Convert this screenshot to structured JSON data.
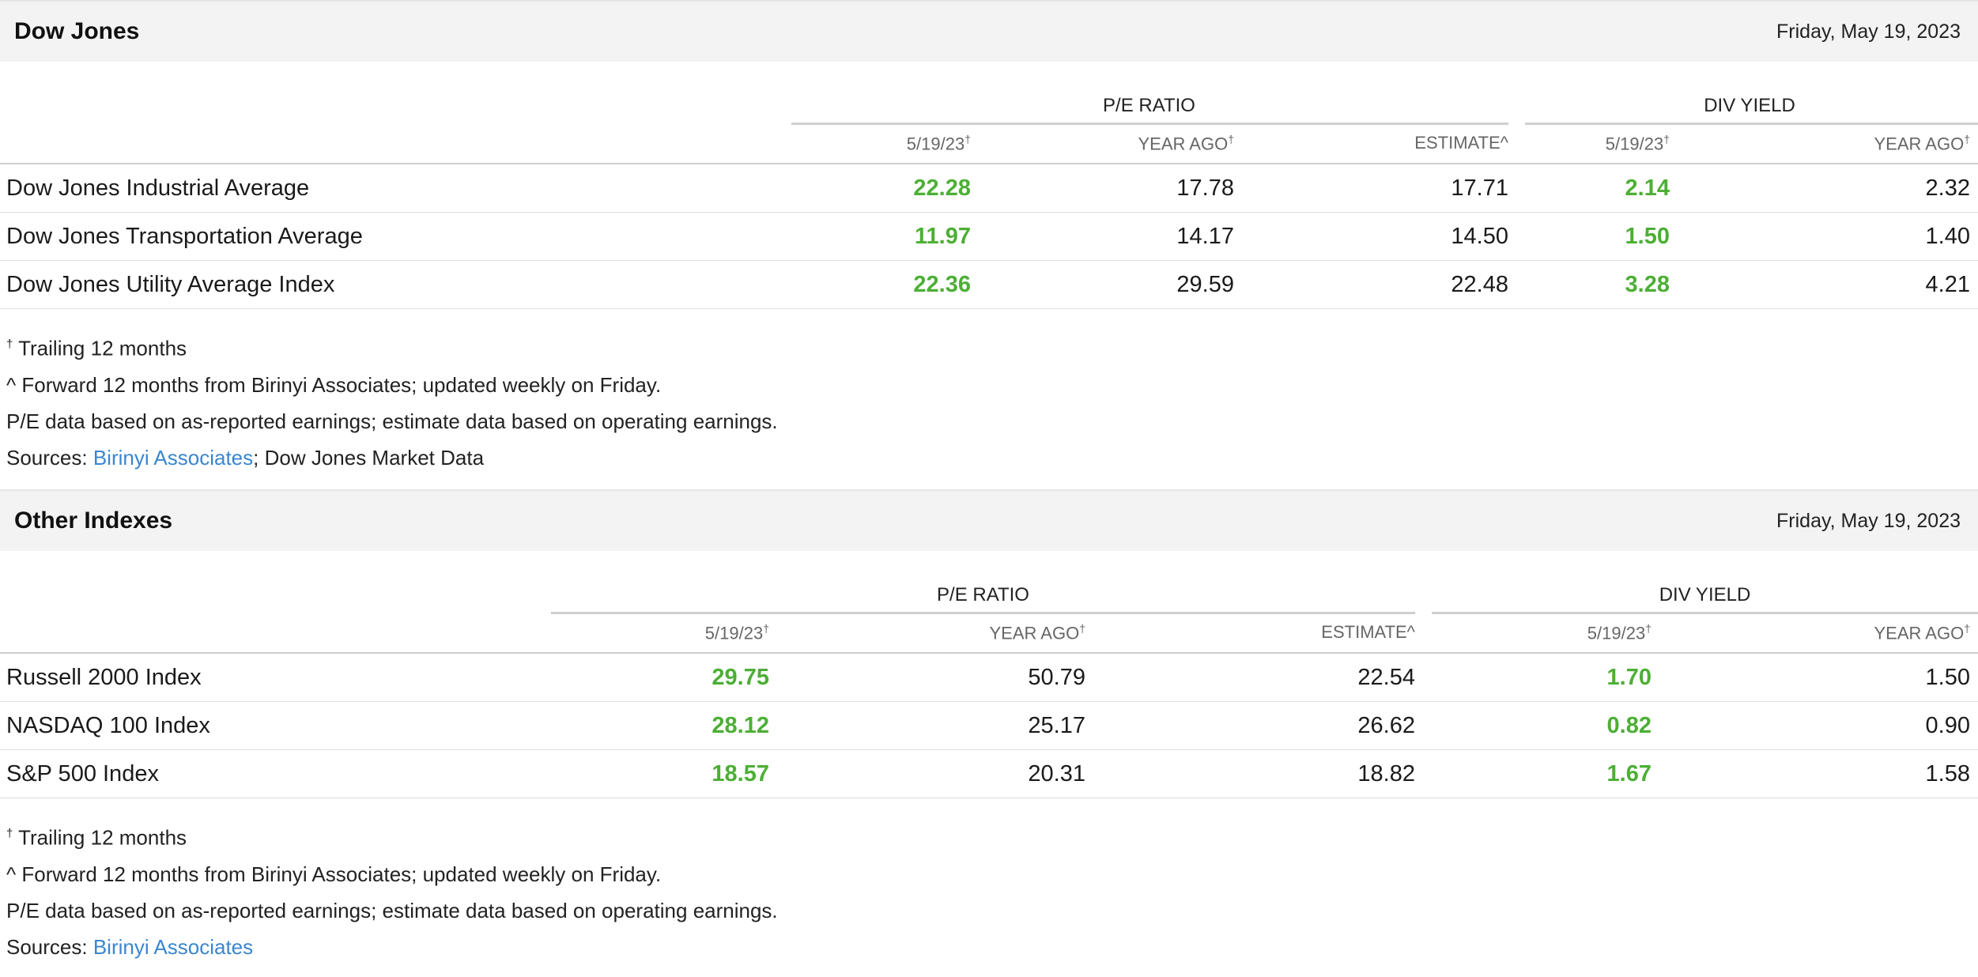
{
  "sections": [
    {
      "title": "Dow Jones",
      "date": "Friday, May 19, 2023",
      "group_pe": "P/E RATIO",
      "group_div": "DIV YIELD",
      "columns": [
        "5/19/23",
        "YEAR AGO",
        "ESTIMATE^",
        "5/19/23",
        "YEAR AGO"
      ],
      "dagger": "†",
      "rows": [
        {
          "name": "Dow Jones Industrial Average",
          "pe_current": "22.28",
          "pe_year_ago": "17.78",
          "pe_estimate": "17.71",
          "div_current": "2.14",
          "div_year_ago": "2.32"
        },
        {
          "name": "Dow Jones Transportation Average",
          "pe_current": "11.97",
          "pe_year_ago": "14.17",
          "pe_estimate": "14.50",
          "div_current": "1.50",
          "div_year_ago": "1.40"
        },
        {
          "name": "Dow Jones Utility Average Index",
          "pe_current": "22.36",
          "pe_year_ago": "29.59",
          "pe_estimate": "22.48",
          "div_current": "3.28",
          "div_year_ago": "4.21"
        }
      ],
      "notes": {
        "trailing": "Trailing 12 months",
        "forward": "^ Forward 12 months from Birinyi Associates; updated weekly on Friday.",
        "basis": "P/E data based on as-reported earnings; estimate data based on operating earnings.",
        "sources_label": "Sources: ",
        "sources_link": "Birinyi Associates",
        "sources_rest": "; Dow Jones Market Data"
      }
    },
    {
      "title": "Other Indexes",
      "date": "Friday, May 19, 2023",
      "group_pe": "P/E RATIO",
      "group_div": "DIV YIELD",
      "columns": [
        "5/19/23",
        "YEAR AGO",
        "ESTIMATE^",
        "5/19/23",
        "YEAR AGO"
      ],
      "dagger": "†",
      "rows": [
        {
          "name": "Russell 2000 Index",
          "pe_current": "29.75",
          "pe_year_ago": "50.79",
          "pe_estimate": "22.54",
          "div_current": "1.70",
          "div_year_ago": "1.50"
        },
        {
          "name": "NASDAQ 100 Index",
          "pe_current": "28.12",
          "pe_year_ago": "25.17",
          "pe_estimate": "26.62",
          "div_current": "0.82",
          "div_year_ago": "0.90"
        },
        {
          "name": "S&P 500 Index",
          "pe_current": "18.57",
          "pe_year_ago": "20.31",
          "pe_estimate": "18.82",
          "div_current": "1.67",
          "div_year_ago": "1.58"
        }
      ],
      "notes": {
        "trailing": "Trailing 12 months",
        "forward": "^ Forward 12 months from Birinyi Associates; updated weekly on Friday.",
        "basis": "P/E data based on as-reported earnings; estimate data based on operating earnings.",
        "sources_label": "Sources: ",
        "sources_link": "Birinyi Associates",
        "sources_rest": ""
      }
    }
  ],
  "colors": {
    "highlight": "#4caf35",
    "link": "#3a86d0",
    "header_bg": "#f3f3f3"
  }
}
